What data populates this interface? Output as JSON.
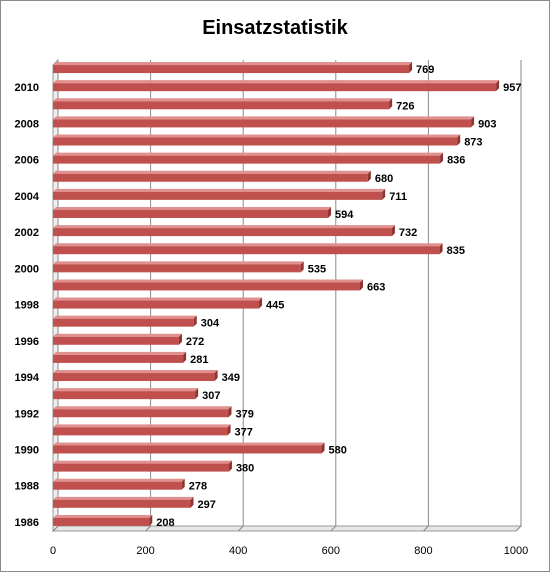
{
  "chart_data": {
    "type": "bar",
    "orientation": "horizontal",
    "title": "Einsatzstatistik",
    "xlabel": "",
    "ylabel": "",
    "xlim": [
      0,
      1000
    ],
    "xticks": [
      0,
      200,
      400,
      600,
      800,
      1000
    ],
    "grid": "vertical",
    "legend": "none",
    "bar_color": "#c0504d",
    "categories": [
      "1986",
      "1987",
      "1988",
      "1989",
      "1990",
      "1991",
      "1992",
      "1993",
      "1994",
      "1995",
      "1996",
      "1997",
      "1998",
      "1999",
      "2000",
      "2001",
      "2002",
      "2003",
      "2004",
      "2005",
      "2006",
      "2007",
      "2008",
      "2009",
      "2010",
      "2011"
    ],
    "category_tick_labels": [
      "1986",
      "1988",
      "1990",
      "1992",
      "1994",
      "1996",
      "1998",
      "2000",
      "2002",
      "2004",
      "2006",
      "2008",
      "2010"
    ],
    "values": [
      208,
      297,
      278,
      380,
      580,
      377,
      379,
      307,
      349,
      281,
      272,
      304,
      445,
      663,
      535,
      835,
      732,
      594,
      711,
      680,
      836,
      873,
      903,
      726,
      957,
      769
    ]
  }
}
